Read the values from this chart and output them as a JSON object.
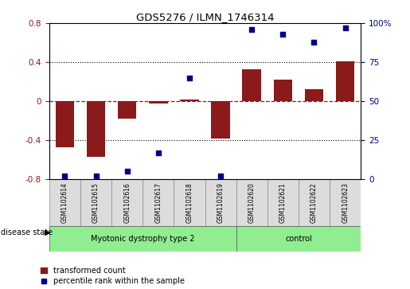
{
  "title": "GDS5276 / ILMN_1746314",
  "samples": [
    "GSM1102614",
    "GSM1102615",
    "GSM1102616",
    "GSM1102617",
    "GSM1102618",
    "GSM1102619",
    "GSM1102620",
    "GSM1102621",
    "GSM1102622",
    "GSM1102623"
  ],
  "transformed_count": [
    -0.47,
    -0.57,
    -0.18,
    -0.02,
    0.02,
    -0.38,
    0.33,
    0.22,
    0.12,
    0.41
  ],
  "percentile_rank": [
    2,
    2,
    5,
    17,
    65,
    2,
    96,
    93,
    88,
    97
  ],
  "ylim_left": [
    -0.8,
    0.8
  ],
  "ylim_right": [
    0,
    100
  ],
  "yticks_left": [
    -0.8,
    -0.4,
    0.0,
    0.4,
    0.8
  ],
  "yticks_right": [
    0,
    25,
    50,
    75,
    100
  ],
  "bar_color": "#8B1A1A",
  "dot_color": "#00008B",
  "group1_label": "Myotonic dystrophy type 2",
  "group2_label": "control",
  "group1_indices": [
    0,
    1,
    2,
    3,
    4,
    5
  ],
  "group2_indices": [
    6,
    7,
    8,
    9
  ],
  "disease_state_label": "disease state",
  "legend_bar_label": "transformed count",
  "legend_dot_label": "percentile rank within the sample",
  "dotted_hlines": [
    -0.4,
    0.4
  ],
  "red_dashed_hline": 0.0,
  "bg_color": "#DCDCDC",
  "group_color": "#90EE90",
  "bar_width": 0.6,
  "figsize": [
    5.15,
    3.63
  ],
  "dpi": 100
}
